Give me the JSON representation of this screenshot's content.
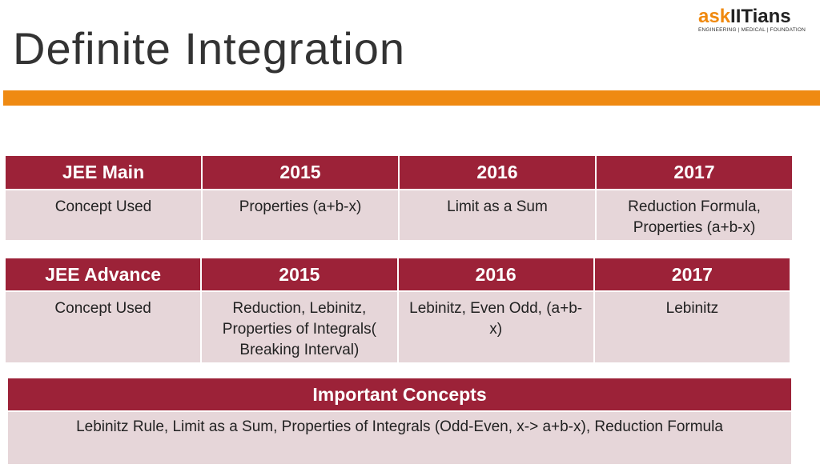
{
  "header": {
    "title": "Definite Integration",
    "logo": {
      "brand_part1": "ask",
      "brand_part2": "IITians",
      "tagline": "ENGINEERING | MEDICAL | FOUNDATION"
    }
  },
  "tables": [
    {
      "header": [
        "JEE Main",
        "2015",
        "2016",
        "2017"
      ],
      "rows": [
        [
          "Concept Used",
          "Properties (a+b-x)",
          "Limit as a Sum",
          "Reduction Formula, Properties (a+b-x)"
        ]
      ]
    },
    {
      "header": [
        "JEE Advance",
        "2015",
        "2016",
        "2017"
      ],
      "rows": [
        [
          "Concept Used",
          "Reduction, Lebinitz, Properties of Integrals( Breaking Interval)",
          "Lebinitz, Even Odd, (a+b-x)",
          "Lebinitz"
        ]
      ]
    }
  ],
  "concepts": {
    "title": "Important Concepts",
    "text": "Lebinitz Rule, Limit as a Sum, Properties of Integrals (Odd-Even, x-> a+b-x), Reduction Formula"
  }
}
